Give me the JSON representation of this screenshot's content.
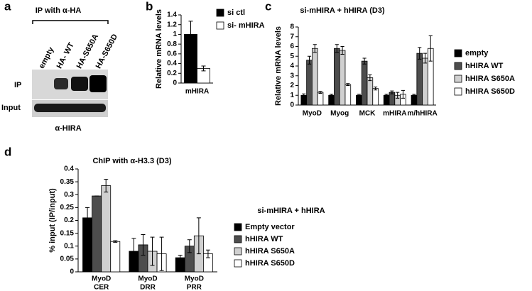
{
  "blot": {
    "panel_label": "a",
    "header": "IP with α-HA",
    "lanes": [
      "empty",
      "HA- WT",
      "HA-S650A",
      "HA-S650D"
    ],
    "rows": [
      "IP",
      "Input"
    ],
    "footer": "α-HIRA"
  },
  "chart_data": [
    {
      "type": "bar",
      "panel_label": "b",
      "y_label": "Relative mRNA levels",
      "categories": [
        "mHIRA"
      ],
      "ylim": [
        0,
        1.4
      ],
      "yticks": [
        0,
        0.2,
        0.4,
        0.6,
        0.8,
        1,
        1.2,
        1.4
      ],
      "series": [
        {
          "name": "si ctl",
          "color": "#000000",
          "values": [
            1.0
          ],
          "errors": [
            0.27
          ]
        },
        {
          "name": "si- mHIRA",
          "color": "#ffffff",
          "values": [
            0.3
          ],
          "errors": [
            0.05
          ]
        }
      ]
    },
    {
      "type": "bar",
      "panel_label": "c",
      "title": "si-mHIRA + hHIRA (D3)",
      "y_label": "Relative mRNA levels",
      "categories": [
        "MyoD",
        "Myog",
        "MCK",
        "mHIRA",
        "m/hHIRA"
      ],
      "ylim": [
        0,
        8
      ],
      "yticks": [
        0,
        1,
        2,
        3,
        4,
        5,
        6,
        7,
        8
      ],
      "series": [
        {
          "name": "empty",
          "color": "#000000",
          "values": [
            1.0,
            1.0,
            1.0,
            1.0,
            1.0
          ],
          "errors": [
            0.15,
            0.1,
            0.1,
            0.1,
            0.1
          ]
        },
        {
          "name": "hHIRA WT",
          "color": "#4d4d4d",
          "values": [
            4.6,
            5.8,
            4.5,
            1.3,
            5.3
          ],
          "errors": [
            0.4,
            0.4,
            0.3,
            0.15,
            0.6
          ]
        },
        {
          "name": "hHIRA S650A",
          "color": "#d0d0d0",
          "values": [
            5.8,
            5.6,
            2.8,
            1.0,
            4.8
          ],
          "errors": [
            0.4,
            0.4,
            0.3,
            0.3,
            0.5
          ]
        },
        {
          "name": "hHIRA S650D",
          "color": "#ffffff",
          "values": [
            1.3,
            2.1,
            1.7,
            1.1,
            5.8
          ],
          "errors": [
            0.1,
            0.1,
            0.15,
            0.4,
            1.3
          ]
        }
      ]
    },
    {
      "type": "bar",
      "panel_label": "d",
      "title": "ChIP with α-H3.3 (D3)",
      "y_label": "% input (IP/input)",
      "legend_title": "si-mHIRA + hHIRA",
      "categories": [
        [
          "MyoD",
          "CER"
        ],
        [
          "MyoD",
          "DRR"
        ],
        [
          "MyoD",
          "PRR"
        ]
      ],
      "ylim": [
        0,
        0.4
      ],
      "yticks": [
        0,
        0.05,
        0.1,
        0.15,
        0.2,
        0.25,
        0.3,
        0.35,
        0.4
      ],
      "series": [
        {
          "name": "Empty vector",
          "color": "#000000",
          "values": [
            0.21,
            0.08,
            0.055
          ],
          "errors": [
            0.04,
            0.05,
            0.01
          ]
        },
        {
          "name": "hHIRA WT",
          "color": "#4d4d4d",
          "values": [
            0.295,
            0.105,
            0.1
          ],
          "errors": [
            0,
            0.04,
            0.025
          ]
        },
        {
          "name": "hHIRA S650A",
          "color": "#d0d0d0",
          "values": [
            0.335,
            0.08,
            0.14
          ],
          "errors": [
            0.025,
            0.055,
            0.07
          ]
        },
        {
          "name": "hHIRA S650D",
          "color": "#ffffff",
          "values": [
            0.118,
            0.07,
            0.07
          ],
          "errors": [
            0.003,
            0.065,
            0.015
          ]
        }
      ]
    }
  ]
}
